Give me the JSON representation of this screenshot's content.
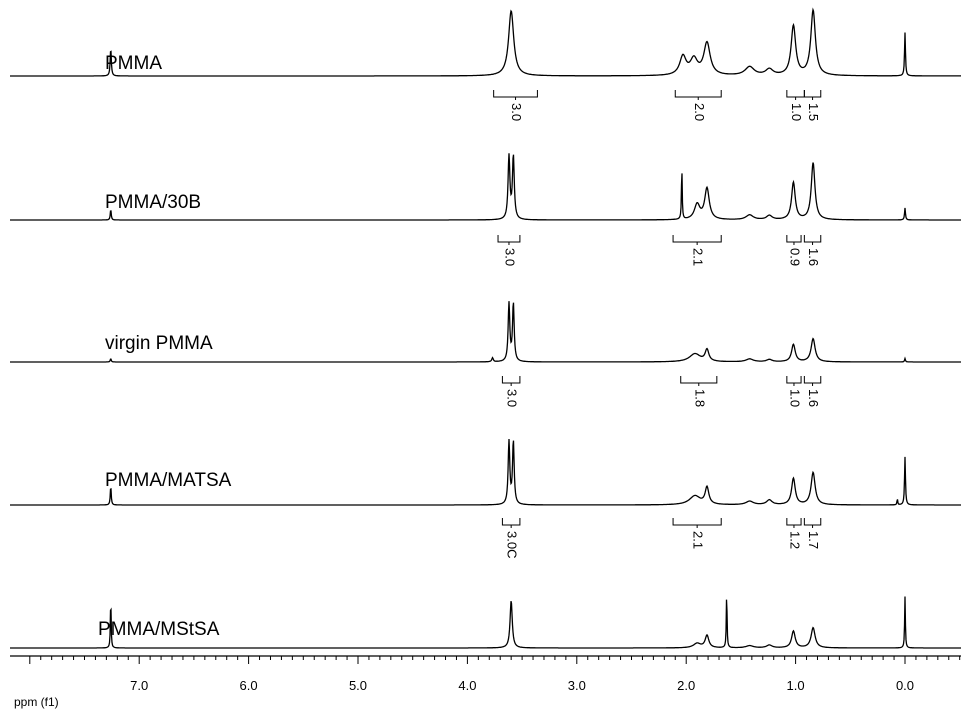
{
  "chart_data": {
    "type": "line",
    "title": "",
    "xlabel": "ppm (f1)",
    "ylabel": "",
    "xlim": [
      7.9,
      -0.5
    ],
    "x_reversed": true,
    "x_ticks": [
      "7.0",
      "6.0",
      "5.0",
      "4.0",
      "3.0",
      "2.0",
      "1.0",
      "0.0"
    ],
    "grid": false,
    "series": [
      {
        "name": "PMMA",
        "peaks": [
          {
            "ppm": 7.26,
            "height": 0.45,
            "width": 0.006
          },
          {
            "ppm": 3.6,
            "height": 1.05,
            "width": 0.028
          },
          {
            "ppm": 2.03,
            "height": 0.3,
            "width": 0.035
          },
          {
            "ppm": 1.93,
            "height": 0.25,
            "width": 0.04
          },
          {
            "ppm": 1.81,
            "height": 0.52,
            "width": 0.035
          },
          {
            "ppm": 1.42,
            "height": 0.14,
            "width": 0.05
          },
          {
            "ppm": 1.24,
            "height": 0.1,
            "width": 0.04
          },
          {
            "ppm": 1.02,
            "height": 0.8,
            "width": 0.025
          },
          {
            "ppm": 0.84,
            "height": 1.05,
            "width": 0.025
          },
          {
            "ppm": 0.0,
            "height": 0.7,
            "width": 0.005
          }
        ],
        "integrals": [
          {
            "label": "3.0",
            "from": 3.76,
            "to": 3.36
          },
          {
            "label": "2.0",
            "from": 2.1,
            "to": 1.68
          },
          {
            "label": "1.0",
            "from": 1.08,
            "to": 0.92
          },
          {
            "label": "1.5",
            "from": 0.92,
            "to": 0.77
          }
        ]
      },
      {
        "name": "PMMA/30B",
        "peaks": [
          {
            "ppm": 7.26,
            "height": 0.18,
            "width": 0.005
          },
          {
            "ppm": 3.62,
            "height": 1.05,
            "width": 0.01
          },
          {
            "ppm": 3.58,
            "height": 1.05,
            "width": 0.01
          },
          {
            "ppm": 2.04,
            "height": 0.88,
            "width": 0.004
          },
          {
            "ppm": 1.9,
            "height": 0.25,
            "width": 0.03
          },
          {
            "ppm": 1.81,
            "height": 0.52,
            "width": 0.025
          },
          {
            "ppm": 1.42,
            "height": 0.08,
            "width": 0.04
          },
          {
            "ppm": 1.24,
            "height": 0.07,
            "width": 0.03
          },
          {
            "ppm": 1.02,
            "height": 0.62,
            "width": 0.02
          },
          {
            "ppm": 0.84,
            "height": 0.95,
            "width": 0.02
          },
          {
            "ppm": 0.0,
            "height": 0.2,
            "width": 0.005
          }
        ],
        "integrals": [
          {
            "label": "3.0",
            "from": 3.72,
            "to": 3.52
          },
          {
            "label": "2.1",
            "from": 2.12,
            "to": 1.68
          },
          {
            "label": "0.9",
            "from": 1.08,
            "to": 0.95
          },
          {
            "label": "1.6",
            "from": 0.92,
            "to": 0.77
          }
        ]
      },
      {
        "name": "virgin PMMA",
        "peaks": [
          {
            "ppm": 7.26,
            "height": 0.06,
            "width": 0.005
          },
          {
            "ppm": 3.77,
            "height": 0.07,
            "width": 0.008
          },
          {
            "ppm": 3.62,
            "height": 1.0,
            "width": 0.009
          },
          {
            "ppm": 3.58,
            "height": 1.0,
            "width": 0.009
          },
          {
            "ppm": 1.92,
            "height": 0.14,
            "width": 0.06
          },
          {
            "ppm": 1.81,
            "height": 0.2,
            "width": 0.02
          },
          {
            "ppm": 1.42,
            "height": 0.05,
            "width": 0.04
          },
          {
            "ppm": 1.24,
            "height": 0.04,
            "width": 0.03
          },
          {
            "ppm": 1.02,
            "height": 0.3,
            "width": 0.02
          },
          {
            "ppm": 0.84,
            "height": 0.4,
            "width": 0.022
          },
          {
            "ppm": 0.0,
            "height": 0.06,
            "width": 0.005
          }
        ],
        "integrals": [
          {
            "label": "3.0",
            "from": 3.68,
            "to": 3.52
          },
          {
            "label": "1.8",
            "from": 2.05,
            "to": 1.72
          },
          {
            "label": "1.0",
            "from": 1.08,
            "to": 0.95
          },
          {
            "label": "1.6",
            "from": 0.92,
            "to": 0.77
          }
        ]
      },
      {
        "name": "PMMA/MATSA",
        "peaks": [
          {
            "ppm": 7.26,
            "height": 0.32,
            "width": 0.005
          },
          {
            "ppm": 3.62,
            "height": 1.05,
            "width": 0.009
          },
          {
            "ppm": 3.58,
            "height": 1.05,
            "width": 0.009
          },
          {
            "ppm": 1.92,
            "height": 0.15,
            "width": 0.06
          },
          {
            "ppm": 1.81,
            "height": 0.28,
            "width": 0.02
          },
          {
            "ppm": 1.42,
            "height": 0.06,
            "width": 0.04
          },
          {
            "ppm": 1.24,
            "height": 0.08,
            "width": 0.03
          },
          {
            "ppm": 1.02,
            "height": 0.44,
            "width": 0.02
          },
          {
            "ppm": 0.84,
            "height": 0.54,
            "width": 0.022
          },
          {
            "ppm": 0.07,
            "height": 0.1,
            "width": 0.004
          },
          {
            "ppm": 0.0,
            "height": 0.8,
            "width": 0.005
          }
        ],
        "integrals": [
          {
            "label": "3.0C",
            "from": 3.68,
            "to": 3.52
          },
          {
            "label": "2.1",
            "from": 2.12,
            "to": 1.68
          },
          {
            "label": "1.2",
            "from": 1.08,
            "to": 0.95
          },
          {
            "label": "1.7",
            "from": 0.92,
            "to": 0.77
          }
        ]
      },
      {
        "name": "PMMA/MStSA",
        "peaks": [
          {
            "ppm": 7.26,
            "height": 0.9,
            "width": 0.004
          },
          {
            "ppm": 3.6,
            "height": 0.85,
            "width": 0.012
          },
          {
            "ppm": 1.9,
            "height": 0.08,
            "width": 0.04
          },
          {
            "ppm": 1.81,
            "height": 0.22,
            "width": 0.02
          },
          {
            "ppm": 1.63,
            "height": 1.0,
            "width": 0.004
          },
          {
            "ppm": 1.42,
            "height": 0.04,
            "width": 0.04
          },
          {
            "ppm": 1.24,
            "height": 0.05,
            "width": 0.03
          },
          {
            "ppm": 1.02,
            "height": 0.3,
            "width": 0.02
          },
          {
            "ppm": 0.84,
            "height": 0.36,
            "width": 0.022
          },
          {
            "ppm": 0.0,
            "height": 0.92,
            "width": 0.004
          }
        ],
        "integrals": []
      }
    ]
  }
}
